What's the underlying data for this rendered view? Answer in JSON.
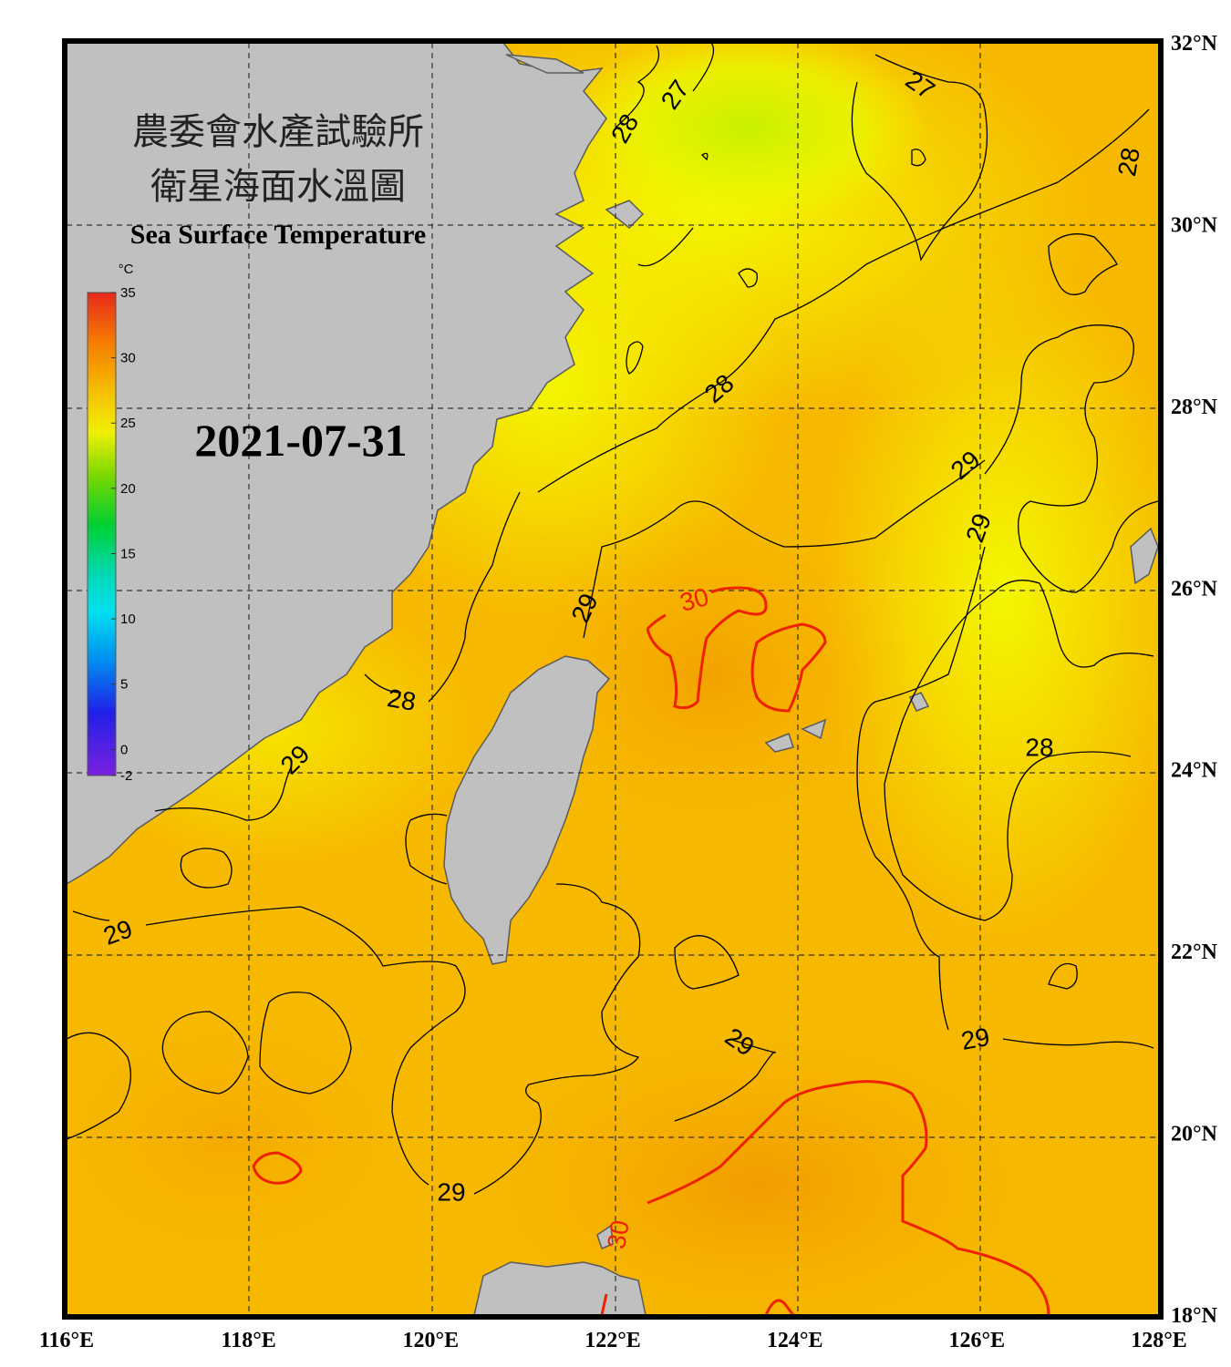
{
  "title": {
    "line1": "農委會水產試驗所",
    "line2": "衛星海面水溫圖",
    "line3": "Sea Surface Temperature"
  },
  "date": "2021-07-31",
  "colorbar": {
    "unit": "°C",
    "min": -2,
    "max": 35,
    "ticks": [
      "35",
      "30",
      "25",
      "20",
      "15",
      "10",
      "5",
      "0",
      "-2"
    ]
  },
  "axes": {
    "lon_labels": [
      "116°E",
      "118°E",
      "120°E",
      "122°E",
      "124°E",
      "126°E",
      "128°E"
    ],
    "lat_labels": [
      "32°N",
      "30°N",
      "28°N",
      "26°N",
      "24°N",
      "22°N",
      "20°N",
      "18°N"
    ]
  },
  "contour_labels": [
    "27",
    "27",
    "28",
    "28",
    "28",
    "28",
    "28",
    "29",
    "29",
    "29",
    "29",
    "29",
    "29",
    "29",
    "29",
    "30",
    "30"
  ],
  "colors": {
    "land": "#c0c0c0",
    "sea_warm": "#f7b300",
    "sea_mid": "#fbd600",
    "sea_cool": "#f3f500",
    "contour": "#000000",
    "contour_30": "#ee2200"
  }
}
